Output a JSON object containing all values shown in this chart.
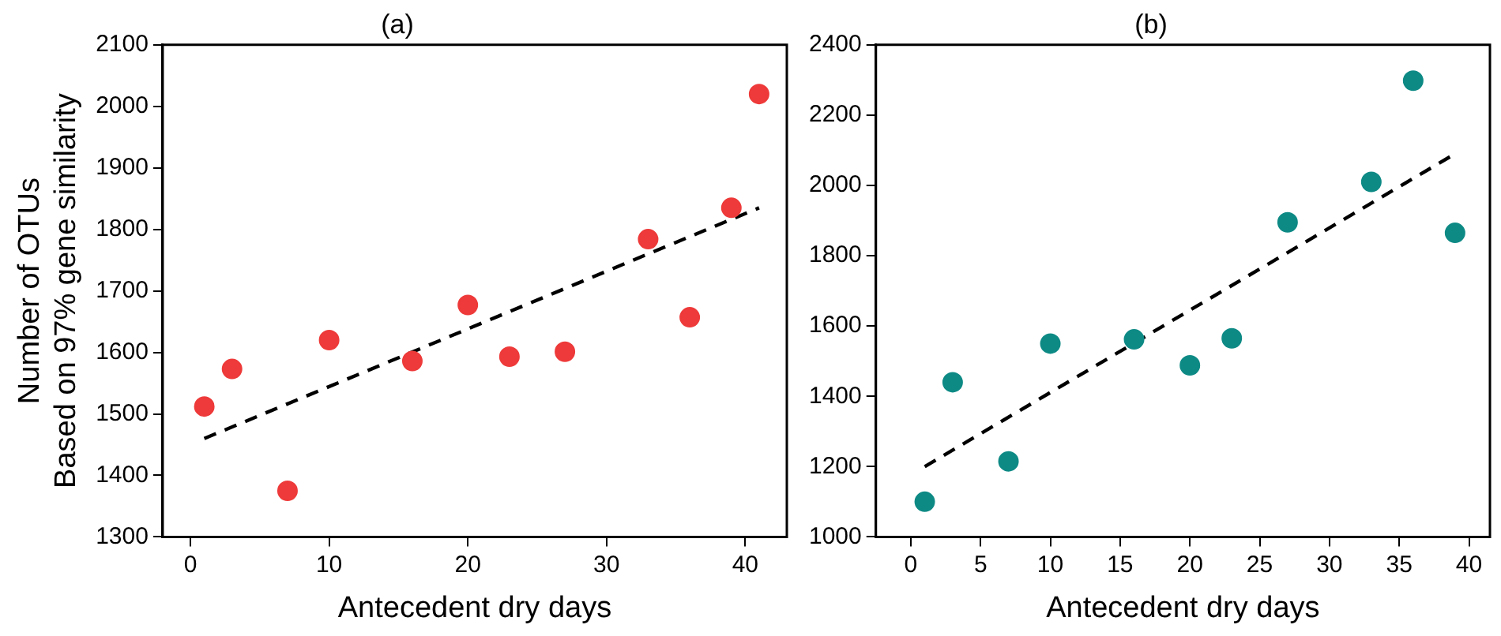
{
  "chart_data": [
    {
      "type": "scatter",
      "title": "(a)",
      "xlabel": "Antecedent dry days",
      "ylabel": "Number of OTUs\nBased on 97% gene similarity",
      "xlim": [
        -2,
        43
      ],
      "ylim": [
        1300,
        2100
      ],
      "xticks": [
        0,
        10,
        20,
        30,
        40
      ],
      "yticks": [
        1300,
        1400,
        1500,
        1600,
        1700,
        1800,
        1900,
        2000,
        2100
      ],
      "grid": false,
      "marker": "circle",
      "series": [
        {
          "color": "#ee3a3a",
          "x": [
            1,
            3,
            7,
            10,
            16,
            20,
            23,
            27,
            33,
            36,
            39,
            41
          ],
          "values": [
            1512,
            1573,
            1375,
            1620,
            1586,
            1677,
            1593,
            1601,
            1784,
            1657,
            1835,
            2020
          ]
        },
        {
          "type": "line",
          "color": "#000000",
          "x": [
            1,
            41
          ],
          "values": [
            1460,
            1835
          ],
          "line_style": "dashed",
          "marker": "none"
        }
      ]
    },
    {
      "type": "scatter",
      "title": "(b)",
      "xlabel": "Antecedent dry days",
      "xlim": [
        -2.5,
        41.5
      ],
      "ylim": [
        1000,
        2400
      ],
      "xticks": [
        0,
        5,
        10,
        15,
        20,
        25,
        30,
        35,
        40
      ],
      "yticks": [
        1000,
        1200,
        1400,
        1600,
        1800,
        2000,
        2200,
        2400
      ],
      "grid": false,
      "marker": "circle",
      "series": [
        {
          "color": "#0e8a85",
          "x": [
            1,
            3,
            7,
            10,
            16,
            20,
            23,
            27,
            33,
            36,
            39
          ],
          "values": [
            1100,
            1440,
            1215,
            1550,
            1562,
            1488,
            1565,
            1895,
            2010,
            2298,
            1865
          ]
        },
        {
          "type": "line",
          "color": "#000000",
          "x": [
            1,
            39
          ],
          "values": [
            1200,
            2090
          ],
          "line_style": "dashed",
          "marker": "none"
        }
      ]
    }
  ]
}
